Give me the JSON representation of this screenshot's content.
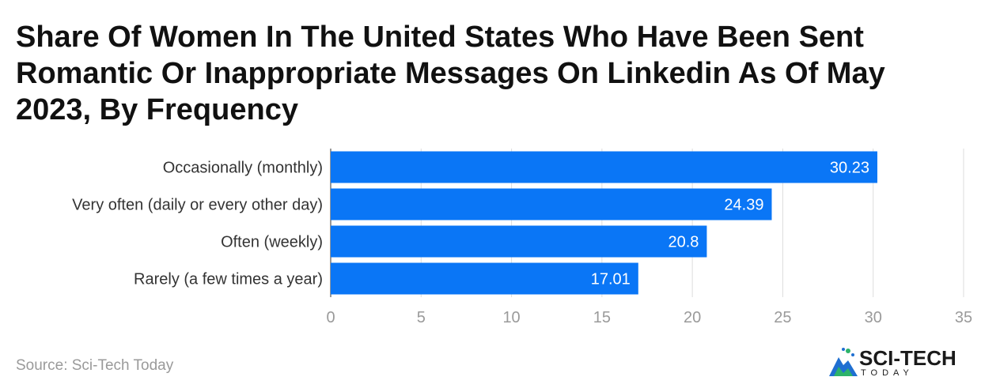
{
  "chart_data": {
    "type": "bar",
    "orientation": "horizontal",
    "title": "Share Of Women In The United States Who Have Been Sent Romantic Or Inappropriate Messages On Linkedin As Of May 2023, By Frequency",
    "categories": [
      "Occasionally (monthly)",
      "Very often (daily or every other day)",
      "Often (weekly)",
      "Rarely (a few times a year)"
    ],
    "values": [
      30.23,
      24.39,
      20.8,
      17.01
    ],
    "value_labels": [
      "30.23",
      "24.39",
      "20.8",
      "17.01"
    ],
    "xlim": [
      0,
      35
    ],
    "x_ticks": [
      0,
      5,
      10,
      15,
      20,
      25,
      30,
      35
    ],
    "grid": true,
    "bar_color": "#0a76f6"
  },
  "source": "Source: Sci-Tech Today",
  "logo": {
    "main": "SCI-TECH",
    "sub": "TODAY",
    "icon": "mountain-logo-icon"
  }
}
